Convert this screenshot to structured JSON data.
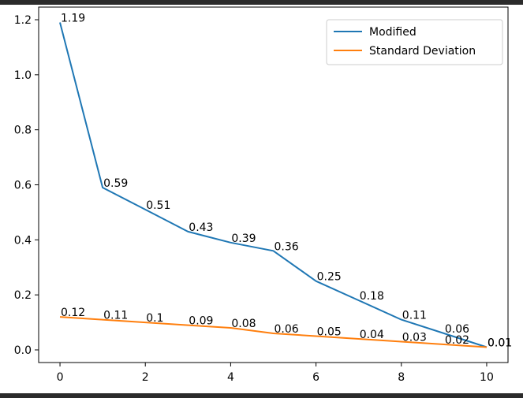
{
  "chart_data": {
    "type": "line",
    "x": [
      0,
      1,
      2,
      3,
      4,
      5,
      6,
      7,
      8,
      9,
      10
    ],
    "series": [
      {
        "name": "Modified",
        "color": "#1f77b4",
        "values": [
          1.19,
          0.59,
          0.51,
          0.43,
          0.39,
          0.36,
          0.25,
          0.18,
          0.11,
          0.06,
          0.01
        ],
        "labels": [
          "1.19",
          "0.59",
          "0.51",
          "0.43",
          "0.39",
          "0.36",
          "0.25",
          "0.18",
          "0.11",
          "0.06",
          "0.01"
        ]
      },
      {
        "name": "Standard Deviation",
        "color": "#ff7f0e",
        "values": [
          0.12,
          0.11,
          0.1,
          0.09,
          0.08,
          0.06,
          0.05,
          0.04,
          0.03,
          0.02,
          0.01
        ],
        "labels": [
          "0.12",
          "0.11",
          "0.1",
          "0.09",
          "0.08",
          "0.06",
          "0.05",
          "0.04",
          "0.03",
          "0.02",
          "0.01"
        ]
      }
    ],
    "title": "",
    "xlabel": "",
    "ylabel": "",
    "xlim": [
      -0.5,
      10.5
    ],
    "ylim": [
      -0.0459,
      1.2459
    ],
    "xticks": [
      "0",
      "2",
      "4",
      "6",
      "8",
      "10"
    ],
    "yticks": [
      "0.0",
      "0.2",
      "0.4",
      "0.6",
      "0.8",
      "1.0",
      "1.2"
    ],
    "grid": false,
    "legend_position": "top-right"
  }
}
